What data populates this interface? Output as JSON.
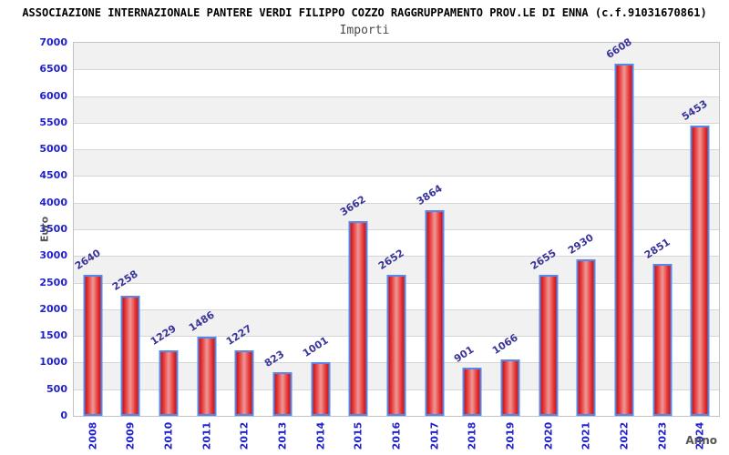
{
  "header": {
    "title": "ASSOCIAZIONE INTERNAZIONALE PANTERE VERDI FILIPPO COZZO RAGGRUPPAMENTO PROV.LE DI ENNA (c.f.91031670861)"
  },
  "chart_data": {
    "type": "bar",
    "title": "Importi",
    "categories": [
      "2008",
      "2009",
      "2010",
      "2011",
      "2012",
      "2013",
      "2014",
      "2015",
      "2016",
      "2017",
      "2018",
      "2019",
      "2020",
      "2021",
      "2022",
      "2023",
      "2024"
    ],
    "values": [
      2640,
      2258,
      1229,
      1486,
      1227,
      823,
      1001,
      3662,
      2652,
      3864,
      901,
      1066,
      2655,
      2930,
      6608,
      2851,
      5453
    ],
    "xlabel": "Anno",
    "ylabel": "Euro",
    "ylim": [
      0,
      7000
    ],
    "ytick_step": 500,
    "grid": "horizontal",
    "legend": "none",
    "colors": {
      "title": "#000000",
      "subtitle": "#4a4a4a",
      "tick_label": "#2121cc",
      "value_label": "#39359b",
      "axis_title": "#555555",
      "plot_border": "#c3c3c3",
      "gridline": "#d6d6d6",
      "band_gray": "#f1f1f2",
      "band_white": "#ffffff",
      "bar_dark": "#cc1212",
      "bar_mid": "#e84040",
      "bar_light": "#ef9898",
      "bar_border": "#5588e8"
    }
  }
}
